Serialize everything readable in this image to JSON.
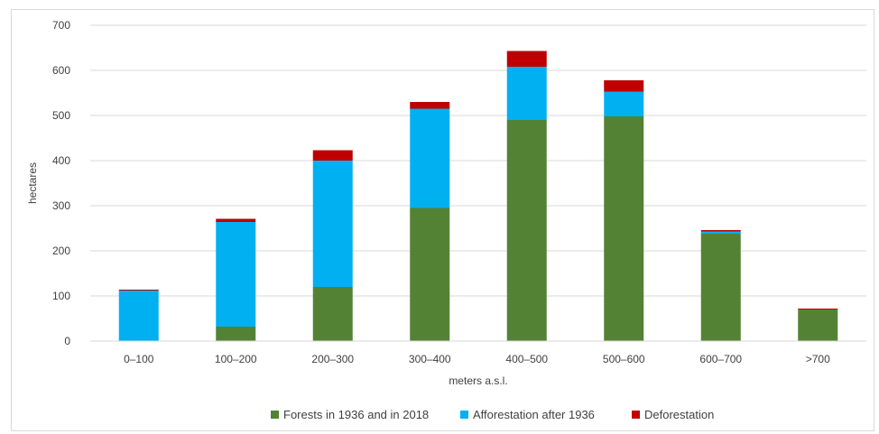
{
  "chart_data": {
    "type": "bar",
    "stacked": true,
    "categories": [
      "0–100",
      "100–200",
      "200–300",
      "300–400",
      "400–500",
      "500–600",
      "600–700",
      ">700"
    ],
    "series": [
      {
        "name": "Forests in 1936 and in 2018",
        "color": "#548235",
        "values": [
          0,
          32,
          120,
          295,
          490,
          498,
          238,
          70
        ]
      },
      {
        "name": "Afforestation after 1936",
        "color": "#00b0f0",
        "values": [
          112,
          232,
          280,
          220,
          118,
          55,
          5,
          0
        ]
      },
      {
        "name": "Deforestation",
        "color": "#c00000",
        "values": [
          2,
          7,
          23,
          15,
          35,
          25,
          3,
          2
        ]
      }
    ],
    "xlabel": "meters a.s.l.",
    "ylabel": "hectares",
    "ylim": [
      0,
      700
    ],
    "yticks": [
      0,
      100,
      200,
      300,
      400,
      500,
      600,
      700
    ],
    "grid": true,
    "legend_position": "bottom"
  }
}
